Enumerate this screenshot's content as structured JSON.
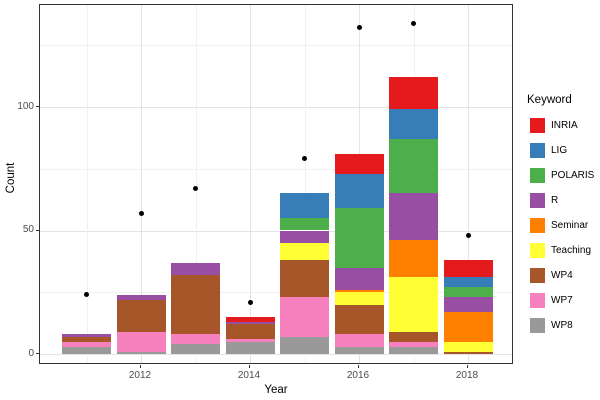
{
  "chart_data": {
    "type": "bar",
    "stacked": true,
    "title": "",
    "xlabel": "Year",
    "ylabel": "Count",
    "legend_title": "Keyword",
    "legend_position": "right",
    "grid": true,
    "categories": [
      2011,
      2012,
      2013,
      2014,
      2015,
      2016,
      2017,
      2018
    ],
    "x_major_ticks": [
      2012,
      2014,
      2016,
      2018
    ],
    "x_minor_ticks": [
      2011,
      2013,
      2015,
      2017
    ],
    "y_major_ticks": [
      0,
      50,
      100
    ],
    "y_minor_ticks": [
      25,
      75,
      125
    ],
    "ylim": [
      -4,
      140
    ],
    "series": [
      {
        "name": "INRIA",
        "color": "#E41A1C",
        "values": [
          0,
          0,
          0,
          2,
          0,
          8,
          13,
          7
        ]
      },
      {
        "name": "LIG",
        "color": "#377EB8",
        "values": [
          0,
          0,
          0,
          0,
          10,
          14,
          12,
          4
        ]
      },
      {
        "name": "POLARIS",
        "color": "#4DAF4A",
        "values": [
          0,
          0,
          0,
          0,
          5,
          24,
          22,
          4
        ]
      },
      {
        "name": "R",
        "color": "#984EA3",
        "values": [
          1,
          2,
          5,
          1,
          5,
          9,
          19,
          6
        ]
      },
      {
        "name": "Seminar",
        "color": "#FF7F00",
        "values": [
          0,
          0,
          0,
          0,
          0,
          1,
          15,
          12
        ]
      },
      {
        "name": "Teaching",
        "color": "#FFFF33",
        "values": [
          0,
          0,
          0,
          0,
          7,
          5,
          22,
          4
        ]
      },
      {
        "name": "WP4",
        "color": "#A65628",
        "values": [
          2,
          13,
          24,
          6,
          15,
          12,
          4,
          1
        ]
      },
      {
        "name": "WP7",
        "color": "#F781BF",
        "values": [
          2,
          8,
          4,
          1,
          16,
          5,
          2,
          0
        ]
      },
      {
        "name": "WP8",
        "color": "#999999",
        "values": [
          3,
          1,
          4,
          5,
          7,
          3,
          3,
          0
        ]
      }
    ],
    "stack_totals": [
      8,
      24,
      37,
      15,
      65,
      81,
      112,
      38
    ],
    "points": {
      "name": "totals-dots",
      "color": "#000000",
      "values": [
        24,
        57,
        67,
        21,
        79,
        132,
        134,
        48
      ]
    }
  }
}
